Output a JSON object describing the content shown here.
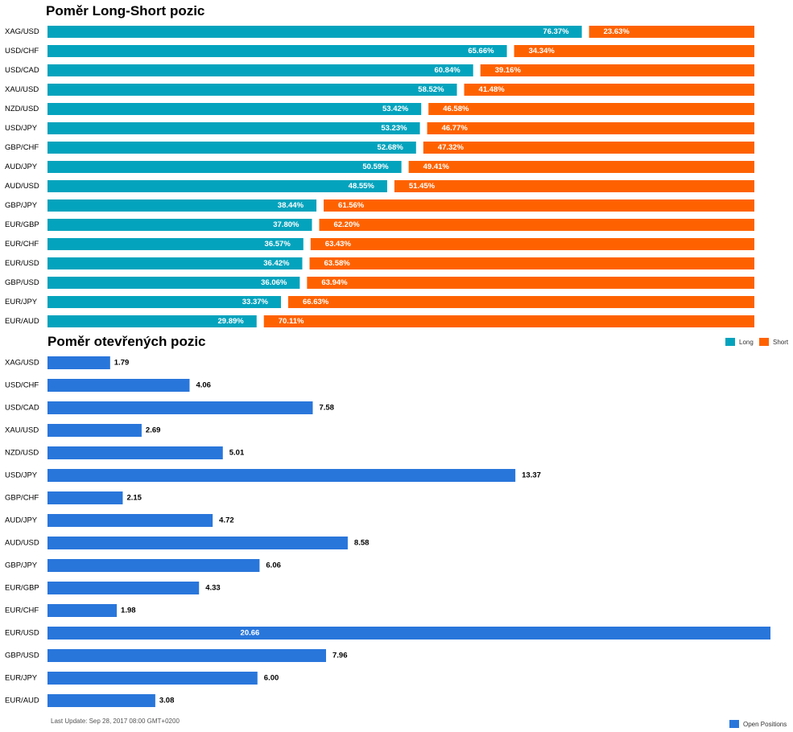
{
  "long_short": {
    "title": "Poměr Long-Short pozic",
    "legend": {
      "long_label": "Long",
      "short_label": "Short"
    }
  },
  "open_positions": {
    "title": "Poměr otevřených pozic",
    "legend_label": "Open Positions"
  },
  "footer": {
    "last_update": "Last Update: Sep 28, 2017 08:00 GMT+0200"
  },
  "colors": {
    "long": "#04a3bd",
    "short": "#fe6200",
    "open": "#2976db"
  },
  "chart_data": [
    {
      "type": "bar",
      "orientation": "horizontal",
      "stacked": true,
      "title": "Poměr Long-Short pozic",
      "categories": [
        "XAG/USD",
        "USD/CHF",
        "USD/CAD",
        "XAU/USD",
        "NZD/USD",
        "USD/JPY",
        "GBP/CHF",
        "AUD/JPY",
        "AUD/USD",
        "GBP/JPY",
        "EUR/GBP",
        "EUR/CHF",
        "EUR/USD",
        "GBP/USD",
        "EUR/JPY",
        "EUR/AUD"
      ],
      "series": [
        {
          "name": "Long",
          "values": [
            76.37,
            65.66,
            60.84,
            58.52,
            53.42,
            53.23,
            52.68,
            50.59,
            48.55,
            38.44,
            37.8,
            36.57,
            36.42,
            36.06,
            33.37,
            29.89
          ],
          "labels": [
            "76.37%",
            "65.66%",
            "60.84%",
            "58.52%",
            "53.42%",
            "53.23%",
            "52.68%",
            "50.59%",
            "48.55%",
            "38.44%",
            "37.80%",
            "36.57%",
            "36.42%",
            "36.06%",
            "33.37%",
            "29.89%"
          ]
        },
        {
          "name": "Short",
          "values": [
            23.63,
            34.34,
            39.16,
            41.48,
            46.58,
            46.77,
            47.32,
            49.41,
            51.45,
            61.56,
            62.2,
            63.43,
            63.58,
            63.94,
            66.63,
            70.11
          ],
          "labels": [
            "23.63%",
            "34.34%",
            "39.16%",
            "41.48%",
            "46.58%",
            "46.77%",
            "47.32%",
            "49.41%",
            "51.45%",
            "61.56%",
            "62.20%",
            "63.43%",
            "63.58%",
            "63.94%",
            "66.63%",
            "70.11%"
          ]
        }
      ],
      "xlim": [
        0,
        100
      ],
      "legend": "bottom-right"
    },
    {
      "type": "bar",
      "orientation": "horizontal",
      "title": "Poměr otevřených pozic",
      "categories": [
        "XAG/USD",
        "USD/CHF",
        "USD/CAD",
        "XAU/USD",
        "NZD/USD",
        "USD/JPY",
        "GBP/CHF",
        "AUD/JPY",
        "AUD/USD",
        "GBP/JPY",
        "EUR/GBP",
        "EUR/CHF",
        "EUR/USD",
        "GBP/USD",
        "EUR/JPY",
        "EUR/AUD"
      ],
      "series": [
        {
          "name": "Open Positions",
          "values": [
            1.79,
            4.06,
            7.58,
            2.69,
            5.01,
            13.37,
            2.15,
            4.72,
            8.58,
            6.06,
            4.33,
            1.98,
            20.66,
            7.96,
            6.0,
            3.08
          ],
          "labels": [
            "1.79",
            "4.06",
            "7.58",
            "2.69",
            "5.01",
            "13.37",
            "2.15",
            "4.72",
            "8.58",
            "6.06",
            "4.33",
            "1.98",
            "20.66",
            "7.96",
            "6.00",
            "3.08"
          ]
        }
      ],
      "xlim": [
        0,
        20.66
      ],
      "legend": "bottom-right"
    }
  ]
}
